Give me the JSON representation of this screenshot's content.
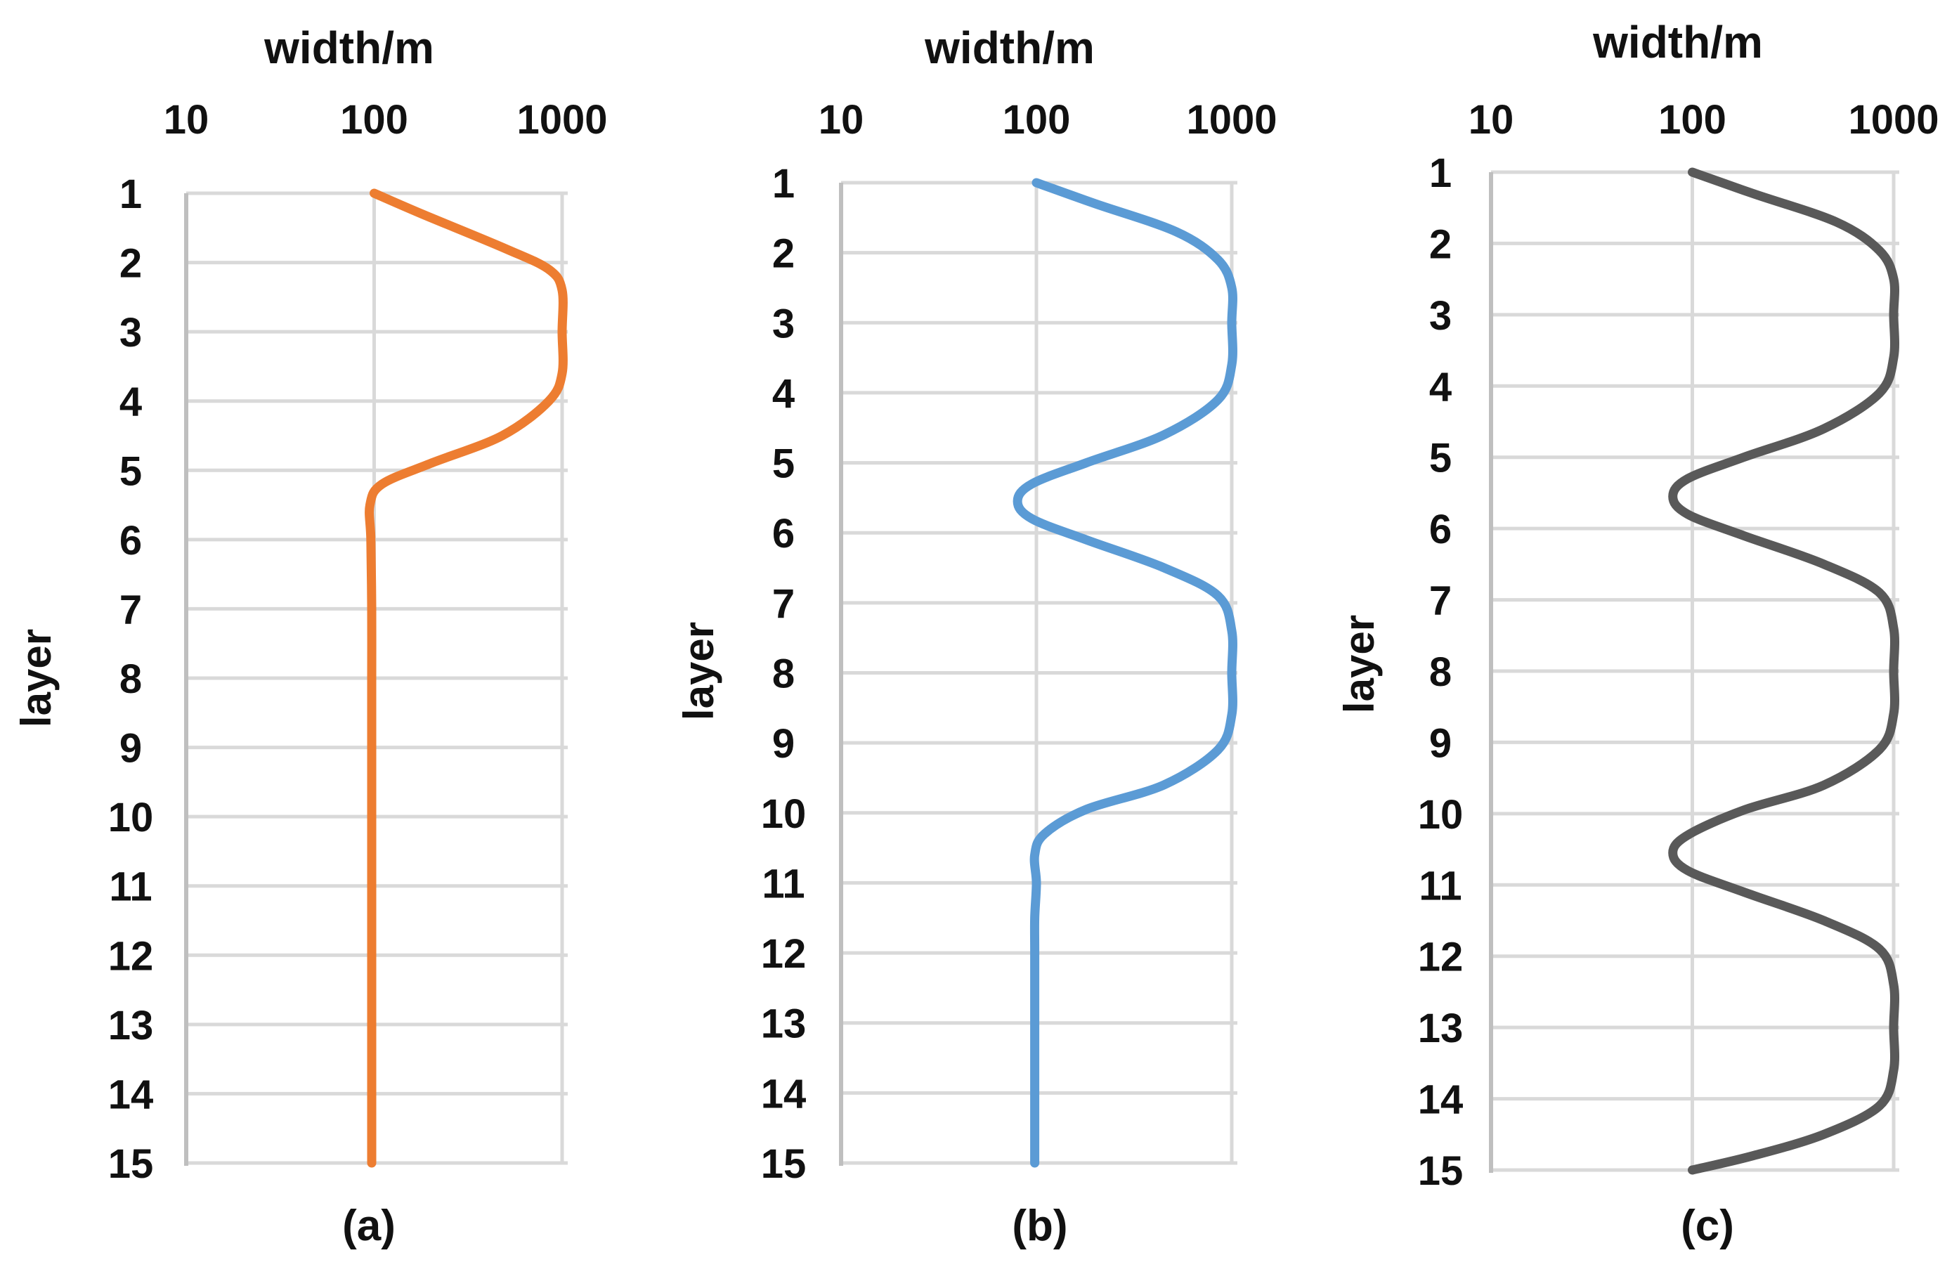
{
  "chart_data": [
    {
      "type": "line",
      "panel_label": "(a)",
      "xlabel": "width/m",
      "ylabel": "layer",
      "x_scale": "log",
      "x_ticks": [
        "10",
        "100",
        "1000"
      ],
      "xlim": [
        10,
        1000
      ],
      "y_ticks": [
        "1",
        "2",
        "3",
        "4",
        "5",
        "6",
        "7",
        "8",
        "9",
        "10",
        "11",
        "12",
        "13",
        "14",
        "15"
      ],
      "ylim": [
        1,
        15
      ],
      "y_reversed": true,
      "grid": true,
      "color": "#ED7D31",
      "series": [
        {
          "x": [
            100,
            180,
            500,
            850,
            1000,
            1000,
            1000,
            850,
            480,
            200,
            110,
            95,
            96,
            97,
            97,
            97,
            97,
            97,
            97
          ],
          "y": [
            1,
            1.3,
            1.8,
            2.1,
            2.4,
            3,
            3.6,
            4,
            4.5,
            4.9,
            5.2,
            5.5,
            6,
            7,
            8,
            9,
            11,
            13,
            15
          ]
        }
      ]
    },
    {
      "type": "line",
      "panel_label": "(b)",
      "xlabel": "width/m",
      "ylabel": "layer",
      "x_scale": "log",
      "x_ticks": [
        "10",
        "100",
        "1000"
      ],
      "xlim": [
        10,
        1000
      ],
      "y_ticks": [
        "1",
        "2",
        "3",
        "4",
        "5",
        "6",
        "7",
        "8",
        "9",
        "10",
        "11",
        "12",
        "13",
        "14",
        "15"
      ],
      "ylim": [
        1,
        15
      ],
      "y_reversed": true,
      "grid": true,
      "color": "#5B9BD5",
      "series": [
        {
          "x": [
            100,
            200,
            520,
            850,
            1000,
            1000,
            1000,
            850,
            450,
            180,
            95,
            80,
            95,
            180,
            450,
            850,
            1000,
            1000,
            1000,
            850,
            450,
            180,
            110,
            98,
            100,
            98,
            98,
            98,
            98,
            98
          ],
          "y": [
            1,
            1.3,
            1.7,
            2.1,
            2.5,
            3,
            3.6,
            4.1,
            4.6,
            5,
            5.3,
            5.55,
            5.8,
            6.1,
            6.5,
            6.9,
            7.4,
            8,
            8.6,
            9.1,
            9.6,
            9.95,
            10.3,
            10.6,
            11,
            11.5,
            12,
            13,
            14,
            15
          ]
        }
      ]
    },
    {
      "type": "line",
      "panel_label": "(c)",
      "xlabel": "width/m",
      "ylabel": "layer",
      "x_scale": "log",
      "x_ticks": [
        "10",
        "100",
        "1000"
      ],
      "xlim": [
        10,
        1000
      ],
      "y_ticks": [
        "1",
        "2",
        "3",
        "4",
        "5",
        "6",
        "7",
        "8",
        "9",
        "10",
        "11",
        "12",
        "13",
        "14",
        "15"
      ],
      "ylim": [
        1,
        15
      ],
      "y_reversed": true,
      "grid": true,
      "color": "#595959",
      "series": [
        {
          "x": [
            100,
            200,
            520,
            850,
            1000,
            1000,
            1000,
            850,
            450,
            180,
            95,
            80,
            95,
            180,
            450,
            850,
            1000,
            1000,
            1000,
            850,
            450,
            180,
            95,
            80,
            95,
            180,
            450,
            850,
            1000,
            1000,
            1000,
            850,
            450,
            200,
            100
          ],
          "y": [
            1,
            1.3,
            1.7,
            2.1,
            2.5,
            3,
            3.6,
            4.1,
            4.6,
            5,
            5.3,
            5.55,
            5.8,
            6.1,
            6.5,
            6.9,
            7.4,
            8,
            8.6,
            9.1,
            9.6,
            9.95,
            10.3,
            10.55,
            10.8,
            11.1,
            11.5,
            11.9,
            12.4,
            13,
            13.6,
            14.1,
            14.5,
            14.8,
            15
          ]
        }
      ]
    }
  ]
}
